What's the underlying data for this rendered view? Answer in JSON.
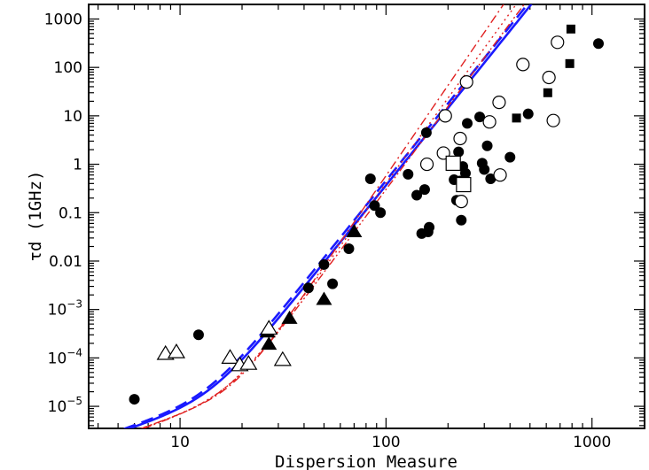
{
  "chart_data": {
    "type": "scatter",
    "xlabel": "Dispersion Measure",
    "ylabel": "τd (1GHz)",
    "xscale": "log",
    "yscale": "log",
    "xlim": [
      3.6,
      1800
    ],
    "ylim": [
      3.5e-06,
      2000
    ],
    "grid": false,
    "legend": "none",
    "x_ticks": [
      {
        "value": 10,
        "label": "10"
      },
      {
        "value": 100,
        "label": "100"
      },
      {
        "value": 1000,
        "label": "1000"
      }
    ],
    "y_ticks": [
      {
        "value": 1e-05,
        "mant": "10",
        "exp": "−5"
      },
      {
        "value": 0.0001,
        "mant": "10",
        "exp": "−4"
      },
      {
        "value": 0.001,
        "mant": "10",
        "exp": "−3"
      },
      {
        "value": 0.01,
        "mant": "0.01",
        "exp": ""
      },
      {
        "value": 0.1,
        "mant": "0.1",
        "exp": ""
      },
      {
        "value": 1,
        "mant": "1",
        "exp": ""
      },
      {
        "value": 10,
        "mant": "10",
        "exp": ""
      },
      {
        "value": 100,
        "mant": "100",
        "exp": ""
      },
      {
        "value": 1000,
        "mant": "1000",
        "exp": ""
      }
    ],
    "series": [
      {
        "marker": "filled-circle",
        "color": "#000000",
        "points": [
          [
            6,
            1.4e-05
          ],
          [
            12.3,
            0.0003
          ],
          [
            42,
            0.0028
          ],
          [
            50,
            0.0085
          ],
          [
            55,
            0.0034
          ],
          [
            66,
            0.018
          ],
          [
            84,
            0.5
          ],
          [
            88,
            0.14
          ],
          [
            94,
            0.1
          ],
          [
            128,
            0.62
          ],
          [
            141,
            0.23
          ],
          [
            149,
            0.037
          ],
          [
            154,
            0.3
          ],
          [
            157,
            4.5
          ],
          [
            160,
            0.04
          ],
          [
            162,
            0.05
          ],
          [
            211,
            0.95
          ],
          [
            214,
            0.48
          ],
          [
            220,
            0.18
          ],
          [
            225,
            1.8
          ],
          [
            228,
            0.45
          ],
          [
            232,
            0.07
          ],
          [
            236,
            0.9
          ],
          [
            243,
            0.65
          ],
          [
            248,
            7
          ],
          [
            285,
            9.5
          ],
          [
            293,
            1.05
          ],
          [
            300,
            0.78
          ],
          [
            310,
            2.4
          ],
          [
            322,
            0.5
          ],
          [
            400,
            1.4
          ],
          [
            490,
            11
          ],
          [
            1075,
            310
          ]
        ]
      },
      {
        "marker": "open-circle",
        "color": "#000000",
        "points": [
          [
            158,
            1.0
          ],
          [
            190,
            1.7
          ],
          [
            194,
            10
          ],
          [
            232,
            0.17
          ],
          [
            229,
            3.4
          ],
          [
            246,
            50
          ],
          [
            318,
            7.5
          ],
          [
            358,
            0.6
          ],
          [
            354,
            19
          ],
          [
            462,
            115
          ],
          [
            618,
            62
          ],
          [
            649,
            8
          ],
          [
            680,
            330
          ]
        ]
      },
      {
        "marker": "filled-triangle",
        "color": "#000000",
        "points": [
          [
            27,
            0.00019
          ],
          [
            26.6,
            0.00034
          ],
          [
            34,
            0.00065
          ],
          [
            50,
            0.0016
          ],
          [
            70,
            0.04
          ]
        ]
      },
      {
        "marker": "open-triangle",
        "color": "#000000",
        "points": [
          [
            8.5,
            0.00012
          ],
          [
            9.6,
            0.00013
          ],
          [
            17.5,
            0.0001
          ],
          [
            19.5,
            7e-05
          ],
          [
            21.5,
            7.5e-05
          ],
          [
            31.5,
            9e-05
          ],
          [
            27,
            0.0004
          ]
        ]
      },
      {
        "marker": "filled-square",
        "color": "#000000",
        "points": [
          [
            430,
            9
          ],
          [
            610,
            30
          ],
          [
            780,
            120
          ],
          [
            790,
            620
          ]
        ]
      },
      {
        "marker": "open-square",
        "color": "#000000",
        "points": [
          [
            212,
            1.05
          ],
          [
            238,
            0.38
          ]
        ]
      }
    ],
    "fits": [
      {
        "style": "solid",
        "color": "#1a1aff",
        "kind": "b96",
        "a": 2.98e-07,
        "b": 1.4,
        "c": 3.1e-05,
        "d": 3.9
      },
      {
        "style": "dashed",
        "color": "#1a1aff",
        "kind": "b96",
        "a": 3.2e-07,
        "b": 1.4,
        "c": 3.6e-05,
        "d": 3.9
      },
      {
        "style": "dashdot",
        "color": "#e02020",
        "kind": "b96",
        "a": 2.1e-07,
        "b": 1.5,
        "c": 1.1e-06,
        "d": 4.7
      },
      {
        "style": "dotted",
        "color": "#e02020",
        "kind": "b96",
        "a": 2.3e-07,
        "b": 1.45,
        "c": 3.5e-06,
        "d": 4.4
      },
      {
        "style": "dashdotdot",
        "color": "#e02020",
        "kind": "b96",
        "a": 2e-07,
        "b": 1.5,
        "c": 6e-06,
        "d": 4.2
      }
    ]
  }
}
